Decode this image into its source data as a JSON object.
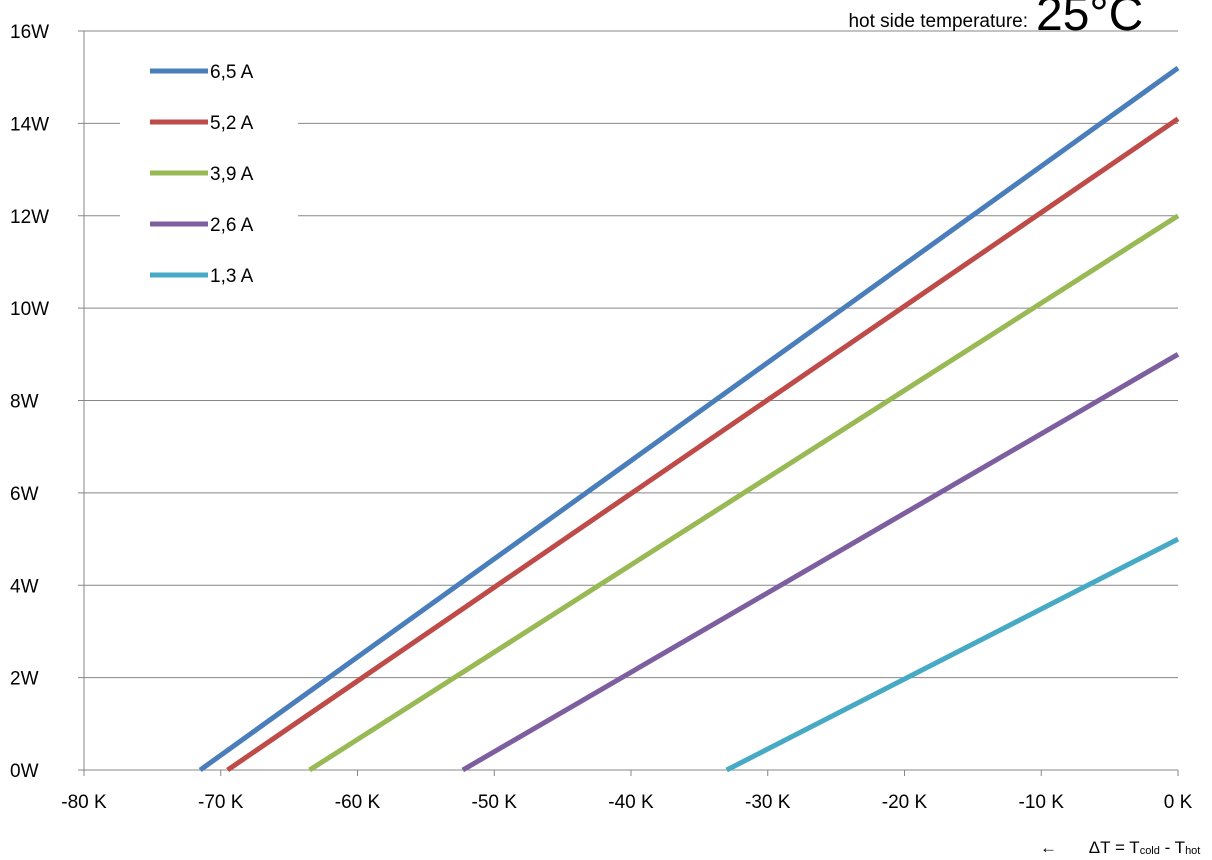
{
  "chart_data": {
    "type": "line",
    "title": "",
    "annotation": {
      "label": "hot side temperature:",
      "value": "25°C"
    },
    "xlabel": {
      "arrow": "←",
      "prefix": "ΔT = T",
      "sub1": "cold",
      "mid": " - T",
      "sub2": "hot"
    },
    "ylabel": "",
    "xlim": [
      -80,
      0
    ],
    "ylim": [
      0,
      16
    ],
    "x_ticks": [
      "-80 K",
      "-70 K",
      "-60 K",
      "-50 K",
      "-40 K",
      "-30 K",
      "-20 K",
      "-10 K",
      "0 K"
    ],
    "y_ticks": [
      "0W",
      "2W",
      "4W",
      "6W",
      "8W",
      "10W",
      "12W",
      "14W",
      "16W"
    ],
    "grid": "horizontal",
    "legend_position": "top-left",
    "series": [
      {
        "name": "6,5 A",
        "color": "#4a7ebb",
        "points": [
          [
            -71.5,
            0
          ],
          [
            0,
            15.2
          ]
        ]
      },
      {
        "name": "5,2 A",
        "color": "#be4b48",
        "points": [
          [
            -69.5,
            0
          ],
          [
            0,
            14.1
          ]
        ]
      },
      {
        "name": "3,9 A",
        "color": "#98b954",
        "points": [
          [
            -63.5,
            0
          ],
          [
            0,
            12.0
          ]
        ]
      },
      {
        "name": "2,6 A",
        "color": "#7d5fa0",
        "points": [
          [
            -52.3,
            0
          ],
          [
            0,
            9.0
          ]
        ]
      },
      {
        "name": "1,3 A",
        "color": "#46aac5",
        "points": [
          [
            -33.0,
            0
          ],
          [
            0,
            5.0
          ]
        ]
      }
    ]
  }
}
